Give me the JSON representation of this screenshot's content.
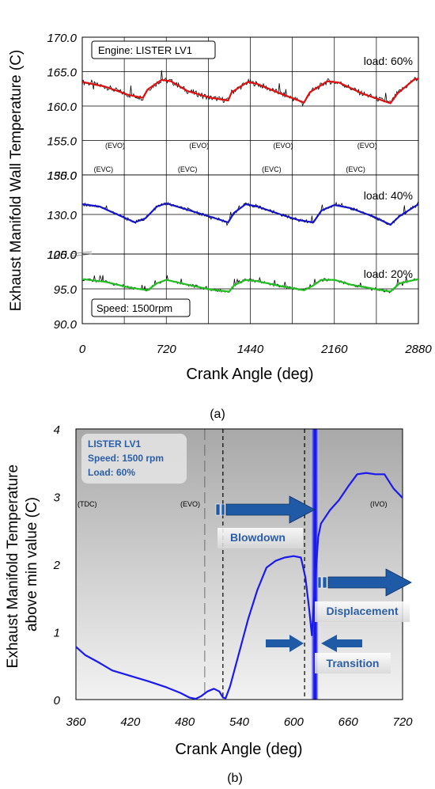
{
  "chart_data": [
    {
      "panel": "(a)",
      "type": "line",
      "ylabel": "Exhaust Manifold Wall Temperature (C)",
      "xlabel": "Crank Angle (deg)",
      "xlim": [
        0,
        2880
      ],
      "xticks": [
        "0",
        "720",
        "1440",
        "2160",
        "2880"
      ],
      "engine_label": "Engine: LISTER LV1",
      "speed_label": "Speed: 1500rpm",
      "evo_label": "(EVO)",
      "evc_label": "(EVC)",
      "evo_positions": [
        620,
        1340,
        2060,
        2780
      ],
      "evc_positions": [
        60,
        780,
        1500,
        2220
      ],
      "subplots": [
        {
          "load_label": "load: 60%",
          "ylim": [
            150,
            170
          ],
          "yticks": [
            "150.0",
            "155.0",
            "160.0",
            "165.0",
            "170.0"
          ],
          "color": "#e01010",
          "x": [
            0,
            200,
            400,
            520,
            560,
            680,
            760,
            900,
            1100,
            1250,
            1280,
            1420,
            1500,
            1700,
            1900,
            1950,
            2100,
            2200,
            2400,
            2640,
            2700,
            2840,
            2880
          ],
          "y": [
            163.5,
            162.8,
            161.6,
            161.2,
            162.4,
            163.8,
            163.6,
            162.2,
            161.2,
            160.8,
            162.0,
            163.5,
            163.2,
            161.8,
            160.5,
            162.0,
            163.6,
            163.4,
            161.8,
            160.4,
            161.8,
            163.8,
            164.0
          ]
        },
        {
          "load_label": "load: 40%",
          "ylim": [
            125,
            135
          ],
          "yticks": [
            "125.0",
            "130.0",
            "135.0"
          ],
          "color": "#1414c8",
          "x": [
            0,
            150,
            300,
            450,
            540,
            640,
            720,
            900,
            1100,
            1250,
            1300,
            1400,
            1500,
            1700,
            1850,
            1980,
            2050,
            2160,
            2300,
            2500,
            2640,
            2720,
            2880
          ],
          "y": [
            131.3,
            131.0,
            130.0,
            129.0,
            129.5,
            131.0,
            131.4,
            130.6,
            129.7,
            129.0,
            130.2,
            131.3,
            131.0,
            130.0,
            129.3,
            129.0,
            130.5,
            131.2,
            130.8,
            129.7,
            128.7,
            129.8,
            131.3
          ]
        },
        {
          "load_label": "load: 20%",
          "ylim": [
            90,
            100
          ],
          "yticks": [
            "90.0",
            "95.0",
            "100.0"
          ],
          "color": "#20c020",
          "x": [
            0,
            200,
            400,
            560,
            640,
            720,
            900,
            1100,
            1260,
            1300,
            1400,
            1500,
            1700,
            1900,
            1980,
            2050,
            2160,
            2300,
            2500,
            2640,
            2720,
            2880
          ],
          "y": [
            96.4,
            96.0,
            95.2,
            94.8,
            95.8,
            96.3,
            95.6,
            94.9,
            94.6,
            95.5,
            96.3,
            96.1,
            95.4,
            94.8,
            95.5,
            96.3,
            96.3,
            95.6,
            95.0,
            94.6,
            95.8,
            96.4
          ]
        }
      ]
    },
    {
      "panel": "(b)",
      "type": "line",
      "ylabel": "Exhaust Manifold Temperature above min value (C)",
      "xlabel": "Crank Angle (deg)",
      "xlim": [
        360,
        720
      ],
      "ylim": [
        0,
        4
      ],
      "xticks": [
        "360",
        "420",
        "480",
        "540",
        "600",
        "660",
        "720"
      ],
      "yticks": [
        "0",
        "1",
        "2",
        "3",
        "4"
      ],
      "legend_lines": [
        "LISTER LV1",
        "Speed: 1500 rpm",
        "Load: 60%"
      ],
      "markers": {
        "tdc": "(TDC)",
        "evo": "(EVO)",
        "ivo": "(IVO)"
      },
      "dashed_lines_x": [
        522,
        612
      ],
      "longdash_lines_x": [
        502
      ],
      "blue_band_x": [
        618,
        628
      ],
      "annotations": {
        "blowdown": "Blowdown",
        "displacement": "Displacement",
        "transition": "Transition"
      },
      "color": "#1a1aee",
      "x": [
        360,
        370,
        385,
        400,
        420,
        440,
        460,
        475,
        485,
        492,
        498,
        505,
        512,
        518,
        522,
        525,
        530,
        540,
        550,
        560,
        570,
        580,
        590,
        600,
        608,
        613,
        617,
        620,
        623,
        627,
        630,
        640,
        650,
        660,
        670,
        680,
        690,
        700,
        710,
        720
      ],
      "y": [
        0.78,
        0.66,
        0.55,
        0.43,
        0.35,
        0.27,
        0.18,
        0.1,
        0.03,
        0.01,
        0.05,
        0.12,
        0.16,
        0.12,
        0.03,
        0.02,
        0.2,
        0.7,
        1.2,
        1.62,
        1.95,
        2.05,
        2.1,
        2.12,
        2.1,
        1.8,
        1.35,
        0.95,
        1.6,
        2.4,
        2.6,
        2.8,
        2.95,
        3.15,
        3.33,
        3.35,
        3.33,
        3.33,
        3.12,
        2.98
      ]
    }
  ],
  "captions": {
    "a": "(a)",
    "b": "(b)"
  }
}
